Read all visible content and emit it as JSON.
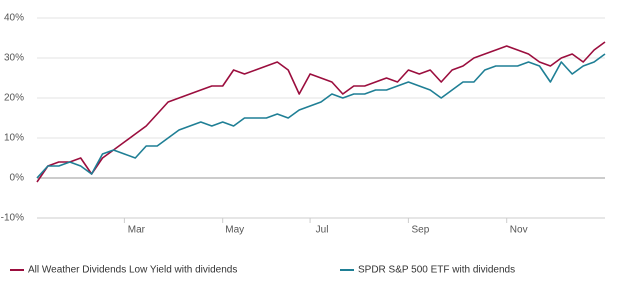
{
  "chart_data": {
    "type": "line",
    "categories": [
      null,
      null,
      null,
      null,
      null,
      null,
      null,
      null,
      "Mar",
      null,
      null,
      null,
      null,
      null,
      null,
      null,
      null,
      "May",
      null,
      null,
      null,
      null,
      null,
      null,
      null,
      "Jul",
      null,
      null,
      null,
      null,
      null,
      null,
      null,
      null,
      "Sep",
      null,
      null,
      null,
      null,
      null,
      null,
      null,
      null,
      "Nov",
      null,
      null,
      null,
      null,
      null,
      null,
      null,
      null,
      null
    ],
    "series": [
      {
        "name": "All Weather Dividends Low Yield with dividends",
        "color": "#9b0e3e",
        "values": [
          -1,
          3,
          4,
          4,
          5,
          1,
          5,
          7,
          9,
          11,
          13,
          16,
          19,
          20,
          21,
          22,
          23,
          23,
          27,
          26,
          27,
          28,
          29,
          27,
          21,
          26,
          25,
          24,
          21,
          23,
          23,
          24,
          25,
          24,
          27,
          26,
          27,
          24,
          27,
          28,
          30,
          31,
          32,
          33,
          32,
          31,
          29,
          28,
          30,
          31,
          29,
          32,
          34
        ]
      },
      {
        "name": "SPDR S&P 500 ETF with dividends",
        "color": "#1f7f95",
        "values": [
          0,
          3,
          3,
          4,
          3,
          1,
          6,
          7,
          6,
          5,
          8,
          8,
          10,
          12,
          13,
          14,
          13,
          14,
          13,
          15,
          15,
          15,
          16,
          15,
          17,
          18,
          19,
          21,
          20,
          21,
          21,
          22,
          22,
          23,
          24,
          23,
          22,
          20,
          22,
          24,
          24,
          27,
          28,
          28,
          28,
          29,
          28,
          24,
          29,
          26,
          28,
          29,
          31
        ]
      }
    ],
    "ylim": [
      -10,
      40
    ],
    "yticks": [
      {
        "value": -10,
        "label": "-10%"
      },
      {
        "value": 0,
        "label": "0%"
      },
      {
        "value": 10,
        "label": "10%"
      },
      {
        "value": 20,
        "label": "20%"
      },
      {
        "value": 30,
        "label": "30%"
      },
      {
        "value": 40,
        "label": "40%"
      }
    ],
    "grid": true
  }
}
